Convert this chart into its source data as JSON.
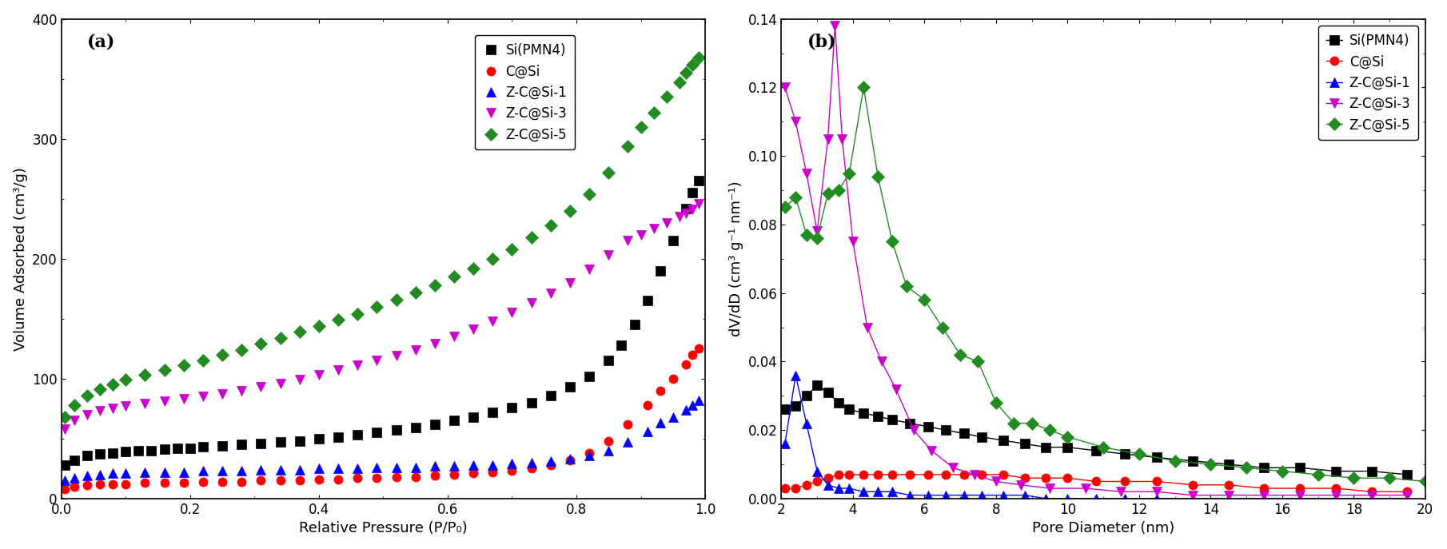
{
  "panel_a": {
    "title": "(a)",
    "xlabel": "Relative Pressure (P/P₀)",
    "ylabel": "Volume Adsorbed (cm³/g)",
    "xlim": [
      0.0,
      1.0
    ],
    "ylim": [
      0,
      400
    ],
    "yticks": [
      0,
      100,
      200,
      300,
      400
    ],
    "xticks": [
      0.0,
      0.2,
      0.4,
      0.6,
      0.8,
      1.0
    ],
    "series": {
      "Si(PMN4)": {
        "color": "#000000",
        "marker": "s",
        "x": [
          0.005,
          0.02,
          0.04,
          0.06,
          0.08,
          0.1,
          0.12,
          0.14,
          0.16,
          0.18,
          0.2,
          0.22,
          0.25,
          0.28,
          0.31,
          0.34,
          0.37,
          0.4,
          0.43,
          0.46,
          0.49,
          0.52,
          0.55,
          0.58,
          0.61,
          0.64,
          0.67,
          0.7,
          0.73,
          0.76,
          0.79,
          0.82,
          0.85,
          0.87,
          0.89,
          0.91,
          0.93,
          0.95,
          0.97,
          0.98,
          0.99
        ],
        "y": [
          28,
          32,
          36,
          37,
          38,
          39,
          40,
          40,
          41,
          42,
          42,
          43,
          44,
          45,
          46,
          47,
          48,
          50,
          51,
          53,
          55,
          57,
          59,
          62,
          65,
          68,
          72,
          76,
          80,
          86,
          93,
          102,
          115,
          128,
          145,
          165,
          190,
          215,
          242,
          255,
          265
        ]
      },
      "C@Si": {
        "color": "#ff0000",
        "marker": "o",
        "x": [
          0.005,
          0.02,
          0.04,
          0.06,
          0.08,
          0.1,
          0.13,
          0.16,
          0.19,
          0.22,
          0.25,
          0.28,
          0.31,
          0.34,
          0.37,
          0.4,
          0.43,
          0.46,
          0.49,
          0.52,
          0.55,
          0.58,
          0.61,
          0.64,
          0.67,
          0.7,
          0.73,
          0.76,
          0.79,
          0.82,
          0.85,
          0.88,
          0.91,
          0.93,
          0.95,
          0.97,
          0.98,
          0.99
        ],
        "y": [
          8,
          10,
          11,
          12,
          12,
          12,
          13,
          13,
          13,
          14,
          14,
          14,
          15,
          15,
          15,
          16,
          16,
          17,
          17,
          18,
          18,
          19,
          20,
          21,
          22,
          23,
          25,
          28,
          32,
          38,
          48,
          62,
          78,
          90,
          100,
          112,
          120,
          125
        ]
      },
      "Z-C@Si-1": {
        "color": "#0000ff",
        "marker": "^",
        "x": [
          0.005,
          0.02,
          0.04,
          0.06,
          0.08,
          0.1,
          0.13,
          0.16,
          0.19,
          0.22,
          0.25,
          0.28,
          0.31,
          0.34,
          0.37,
          0.4,
          0.43,
          0.46,
          0.49,
          0.52,
          0.55,
          0.58,
          0.61,
          0.64,
          0.67,
          0.7,
          0.73,
          0.76,
          0.79,
          0.82,
          0.85,
          0.88,
          0.91,
          0.93,
          0.95,
          0.97,
          0.98,
          0.99
        ],
        "y": [
          15,
          17,
          19,
          20,
          21,
          21,
          22,
          22,
          22,
          23,
          23,
          23,
          24,
          24,
          24,
          25,
          25,
          25,
          26,
          26,
          26,
          27,
          27,
          28,
          28,
          29,
          30,
          31,
          33,
          36,
          40,
          47,
          56,
          63,
          68,
          74,
          78,
          82
        ]
      },
      "Z-C@Si-3": {
        "color": "#cc00cc",
        "marker": "v",
        "x": [
          0.005,
          0.02,
          0.04,
          0.06,
          0.08,
          0.1,
          0.13,
          0.16,
          0.19,
          0.22,
          0.25,
          0.28,
          0.31,
          0.34,
          0.37,
          0.4,
          0.43,
          0.46,
          0.49,
          0.52,
          0.55,
          0.58,
          0.61,
          0.64,
          0.67,
          0.7,
          0.73,
          0.76,
          0.79,
          0.82,
          0.85,
          0.88,
          0.9,
          0.92,
          0.94,
          0.96,
          0.97,
          0.98,
          0.99
        ],
        "y": [
          58,
          65,
          70,
          73,
          75,
          77,
          79,
          81,
          83,
          85,
          87,
          90,
          93,
          96,
          99,
          103,
          107,
          111,
          115,
          119,
          124,
          129,
          135,
          141,
          148,
          155,
          163,
          171,
          180,
          191,
          203,
          215,
          220,
          225,
          230,
          235,
          238,
          241,
          246
        ]
      },
      "Z-C@Si-5": {
        "color": "#228B22",
        "marker": "D",
        "x": [
          0.005,
          0.02,
          0.04,
          0.06,
          0.08,
          0.1,
          0.13,
          0.16,
          0.19,
          0.22,
          0.25,
          0.28,
          0.31,
          0.34,
          0.37,
          0.4,
          0.43,
          0.46,
          0.49,
          0.52,
          0.55,
          0.58,
          0.61,
          0.64,
          0.67,
          0.7,
          0.73,
          0.76,
          0.79,
          0.82,
          0.85,
          0.88,
          0.9,
          0.92,
          0.94,
          0.96,
          0.97,
          0.98,
          0.99
        ],
        "y": [
          68,
          78,
          86,
          91,
          95,
          99,
          103,
          107,
          111,
          115,
          120,
          124,
          129,
          134,
          139,
          144,
          149,
          154,
          160,
          166,
          172,
          178,
          185,
          192,
          200,
          208,
          218,
          228,
          240,
          254,
          272,
          294,
          310,
          322,
          335,
          347,
          355,
          362,
          368
        ]
      }
    }
  },
  "panel_b": {
    "title": "(b)",
    "xlabel": "Pore Diameter (nm)",
    "ylabel": "dV/dD (cm³ g⁻¹ nm⁻¹)",
    "xlim": [
      2,
      20
    ],
    "ylim": [
      0,
      0.14
    ],
    "yticks": [
      0.0,
      0.02,
      0.04,
      0.06,
      0.08,
      0.1,
      0.12,
      0.14
    ],
    "xticks": [
      2,
      4,
      6,
      8,
      10,
      12,
      14,
      16,
      18,
      20
    ],
    "series": {
      "Si(PMN4)": {
        "color": "#000000",
        "marker": "s",
        "x": [
          2.1,
          2.4,
          2.7,
          3.0,
          3.3,
          3.6,
          3.9,
          4.3,
          4.7,
          5.1,
          5.6,
          6.1,
          6.6,
          7.1,
          7.6,
          8.2,
          8.8,
          9.4,
          10.0,
          10.8,
          11.6,
          12.5,
          13.5,
          14.5,
          15.5,
          16.5,
          17.5,
          18.5,
          19.5
        ],
        "y": [
          0.026,
          0.027,
          0.03,
          0.033,
          0.031,
          0.028,
          0.026,
          0.025,
          0.024,
          0.023,
          0.022,
          0.021,
          0.02,
          0.019,
          0.018,
          0.017,
          0.016,
          0.015,
          0.015,
          0.014,
          0.013,
          0.012,
          0.011,
          0.01,
          0.009,
          0.009,
          0.008,
          0.008,
          0.007
        ]
      },
      "C@Si": {
        "color": "#ff0000",
        "marker": "o",
        "x": [
          2.1,
          2.4,
          2.7,
          3.0,
          3.3,
          3.6,
          3.9,
          4.3,
          4.7,
          5.1,
          5.6,
          6.1,
          6.6,
          7.1,
          7.6,
          8.2,
          8.8,
          9.4,
          10.0,
          10.8,
          11.6,
          12.5,
          13.5,
          14.5,
          15.5,
          16.5,
          17.5,
          18.5,
          19.5
        ],
        "y": [
          0.003,
          0.003,
          0.004,
          0.005,
          0.006,
          0.007,
          0.007,
          0.007,
          0.007,
          0.007,
          0.007,
          0.007,
          0.007,
          0.007,
          0.007,
          0.007,
          0.006,
          0.006,
          0.006,
          0.005,
          0.005,
          0.005,
          0.004,
          0.004,
          0.003,
          0.003,
          0.003,
          0.002,
          0.002
        ]
      },
      "Z-C@Si-1": {
        "color": "#0000ff",
        "marker": "^",
        "x": [
          2.1,
          2.4,
          2.7,
          3.0,
          3.3,
          3.6,
          3.9,
          4.3,
          4.7,
          5.1,
          5.6,
          6.1,
          6.6,
          7.1,
          7.6,
          8.2,
          8.8,
          9.4,
          10.0,
          10.8,
          11.6,
          12.5,
          13.5,
          14.5,
          15.5,
          16.5,
          17.5,
          18.5,
          19.5
        ],
        "y": [
          0.016,
          0.036,
          0.022,
          0.008,
          0.004,
          0.003,
          0.003,
          0.002,
          0.002,
          0.002,
          0.001,
          0.001,
          0.001,
          0.001,
          0.001,
          0.001,
          0.001,
          0.0,
          0.0,
          0.0,
          0.0,
          0.0,
          0.0,
          0.0,
          0.0,
          0.0,
          0.0,
          0.0,
          0.0
        ]
      },
      "Z-C@Si-3": {
        "color": "#cc00cc",
        "marker": "v",
        "x": [
          2.1,
          2.4,
          2.7,
          3.0,
          3.3,
          3.5,
          3.7,
          4.0,
          4.4,
          4.8,
          5.2,
          5.7,
          6.2,
          6.8,
          7.4,
          8.0,
          8.7,
          9.5,
          10.5,
          11.5,
          12.5,
          13.5,
          14.5,
          15.5,
          16.5,
          17.5,
          18.5,
          19.5
        ],
        "y": [
          0.12,
          0.11,
          0.095,
          0.078,
          0.105,
          0.138,
          0.105,
          0.075,
          0.05,
          0.04,
          0.032,
          0.02,
          0.014,
          0.009,
          0.007,
          0.005,
          0.004,
          0.003,
          0.003,
          0.002,
          0.002,
          0.001,
          0.001,
          0.001,
          0.001,
          0.001,
          0.001,
          0.001
        ]
      },
      "Z-C@Si-5": {
        "color": "#228B22",
        "marker": "D",
        "x": [
          2.1,
          2.4,
          2.7,
          3.0,
          3.3,
          3.6,
          3.9,
          4.3,
          4.7,
          5.1,
          5.5,
          6.0,
          6.5,
          7.0,
          7.5,
          8.0,
          8.5,
          9.0,
          9.5,
          10.0,
          11.0,
          12.0,
          13.0,
          14.0,
          15.0,
          16.0,
          17.0,
          18.0,
          19.0,
          20.0
        ],
        "y": [
          0.085,
          0.088,
          0.077,
          0.076,
          0.089,
          0.09,
          0.095,
          0.12,
          0.094,
          0.075,
          0.062,
          0.058,
          0.05,
          0.042,
          0.04,
          0.028,
          0.022,
          0.022,
          0.02,
          0.018,
          0.015,
          0.013,
          0.011,
          0.01,
          0.009,
          0.008,
          0.007,
          0.006,
          0.006,
          0.005
        ]
      }
    }
  }
}
